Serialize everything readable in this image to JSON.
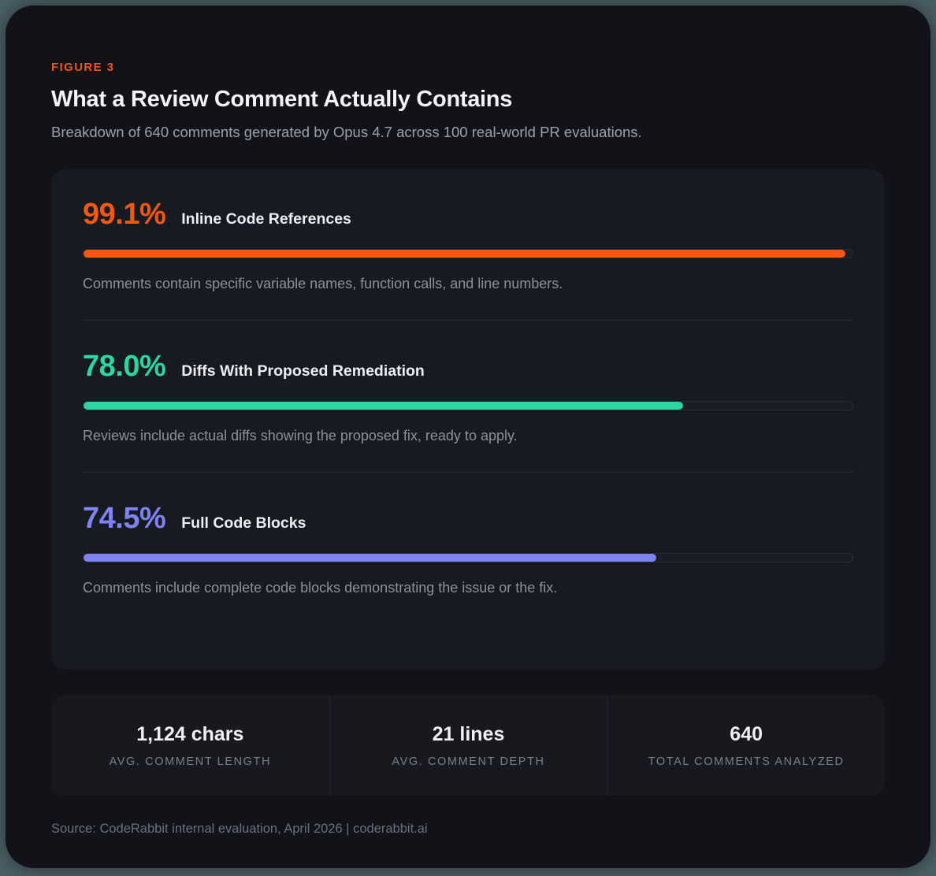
{
  "figure_label": "FIGURE 3",
  "title": "What a Review Comment Actually Contains",
  "subtitle": "Breakdown of 640 comments generated by Opus 4.7 across 100 real-world PR evaluations.",
  "chart_data": {
    "type": "bar",
    "orientation": "horizontal",
    "categories": [
      "Inline Code References",
      "Diffs With Proposed Remediation",
      "Full Code Blocks"
    ],
    "values": [
      99.1,
      78.0,
      74.5
    ],
    "unit": "%",
    "xlim": [
      0,
      100
    ],
    "title": "What a Review Comment Actually Contains",
    "xlabel": "",
    "ylabel": "",
    "legend": "none",
    "grid": false,
    "bar_colors": [
      "#f4570e",
      "#2dd5a0",
      "#7f83f1"
    ]
  },
  "stats": [
    {
      "percent": "99.1%",
      "value": 99.1,
      "color": "#f4570e",
      "label": "Inline Code References",
      "description": "Comments contain specific variable names, function calls, and line numbers."
    },
    {
      "percent": "78.0%",
      "value": 78.0,
      "color": "#2dd5a0",
      "label": "Diffs With Proposed Remediation",
      "description": "Reviews include actual diffs showing the proposed fix, ready to apply."
    },
    {
      "percent": "74.5%",
      "value": 74.5,
      "color": "#7f83f1",
      "label": "Full Code Blocks",
      "description": "Comments include complete code blocks demonstrating the issue or the fix."
    }
  ],
  "summary_stats": [
    {
      "value": "1,124 chars",
      "label": "AVG. COMMENT LENGTH"
    },
    {
      "value": "21 lines",
      "label": "AVG. COMMENT DEPTH"
    },
    {
      "value": "640",
      "label": "TOTAL COMMENTS ANALYZED"
    }
  ],
  "footer": "Source: CodeRabbit internal evaluation, April 2026  |  coderabbit.ai",
  "colors": {
    "page_background": "#4b5f66",
    "card_background": "#121318",
    "panel_background": "#181a21",
    "accent_orange": "#f4570e",
    "accent_green": "#2dd5a0",
    "accent_purple": "#7f83f1",
    "title_text": "#f2f3f5",
    "muted_text": "#8a919d"
  }
}
